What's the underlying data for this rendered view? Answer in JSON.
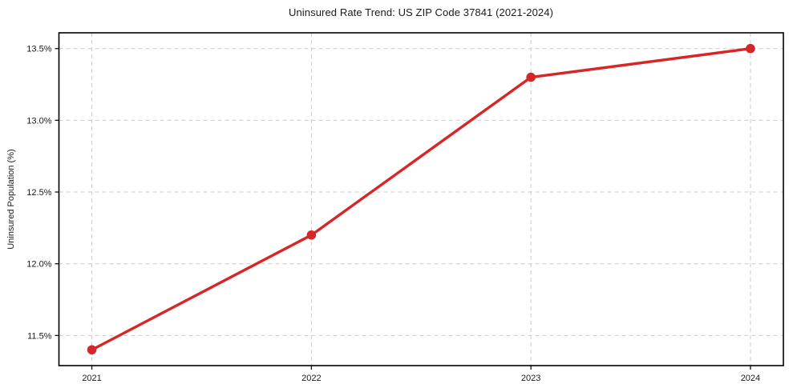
{
  "figure": {
    "title": "Uninsured Rate Trend: US ZIP Code 37841 (2021-2024)"
  },
  "chart_data": {
    "type": "line",
    "title": "Uninsured Rate Trend: US ZIP Code 37841 (2021-2024)",
    "xlabel": "",
    "ylabel": "Uninsured Population (%)",
    "x": [
      2021,
      2022,
      2023,
      2024
    ],
    "x_tick_labels": [
      "2021",
      "2022",
      "2023",
      "2024"
    ],
    "series": [
      {
        "name": "Uninsured Rate",
        "values": [
          11.4,
          12.2,
          13.3,
          13.5
        ],
        "color": "#d62728",
        "marker": "circle"
      }
    ],
    "y_ticks": [
      11.5,
      12.0,
      12.5,
      13.0,
      13.5
    ],
    "y_tick_labels": [
      "11.5%",
      "12.0%",
      "12.5%",
      "13.0%",
      "13.5%"
    ],
    "xlim": [
      2020.85,
      2024.15
    ],
    "ylim": [
      11.29,
      13.61
    ],
    "grid": true,
    "grid_color": "#cccccc",
    "grid_style": "dashed",
    "axis_border_color": "#000000",
    "tick_color": "#000000",
    "legend": "none",
    "background_color": "#ffffff"
  }
}
